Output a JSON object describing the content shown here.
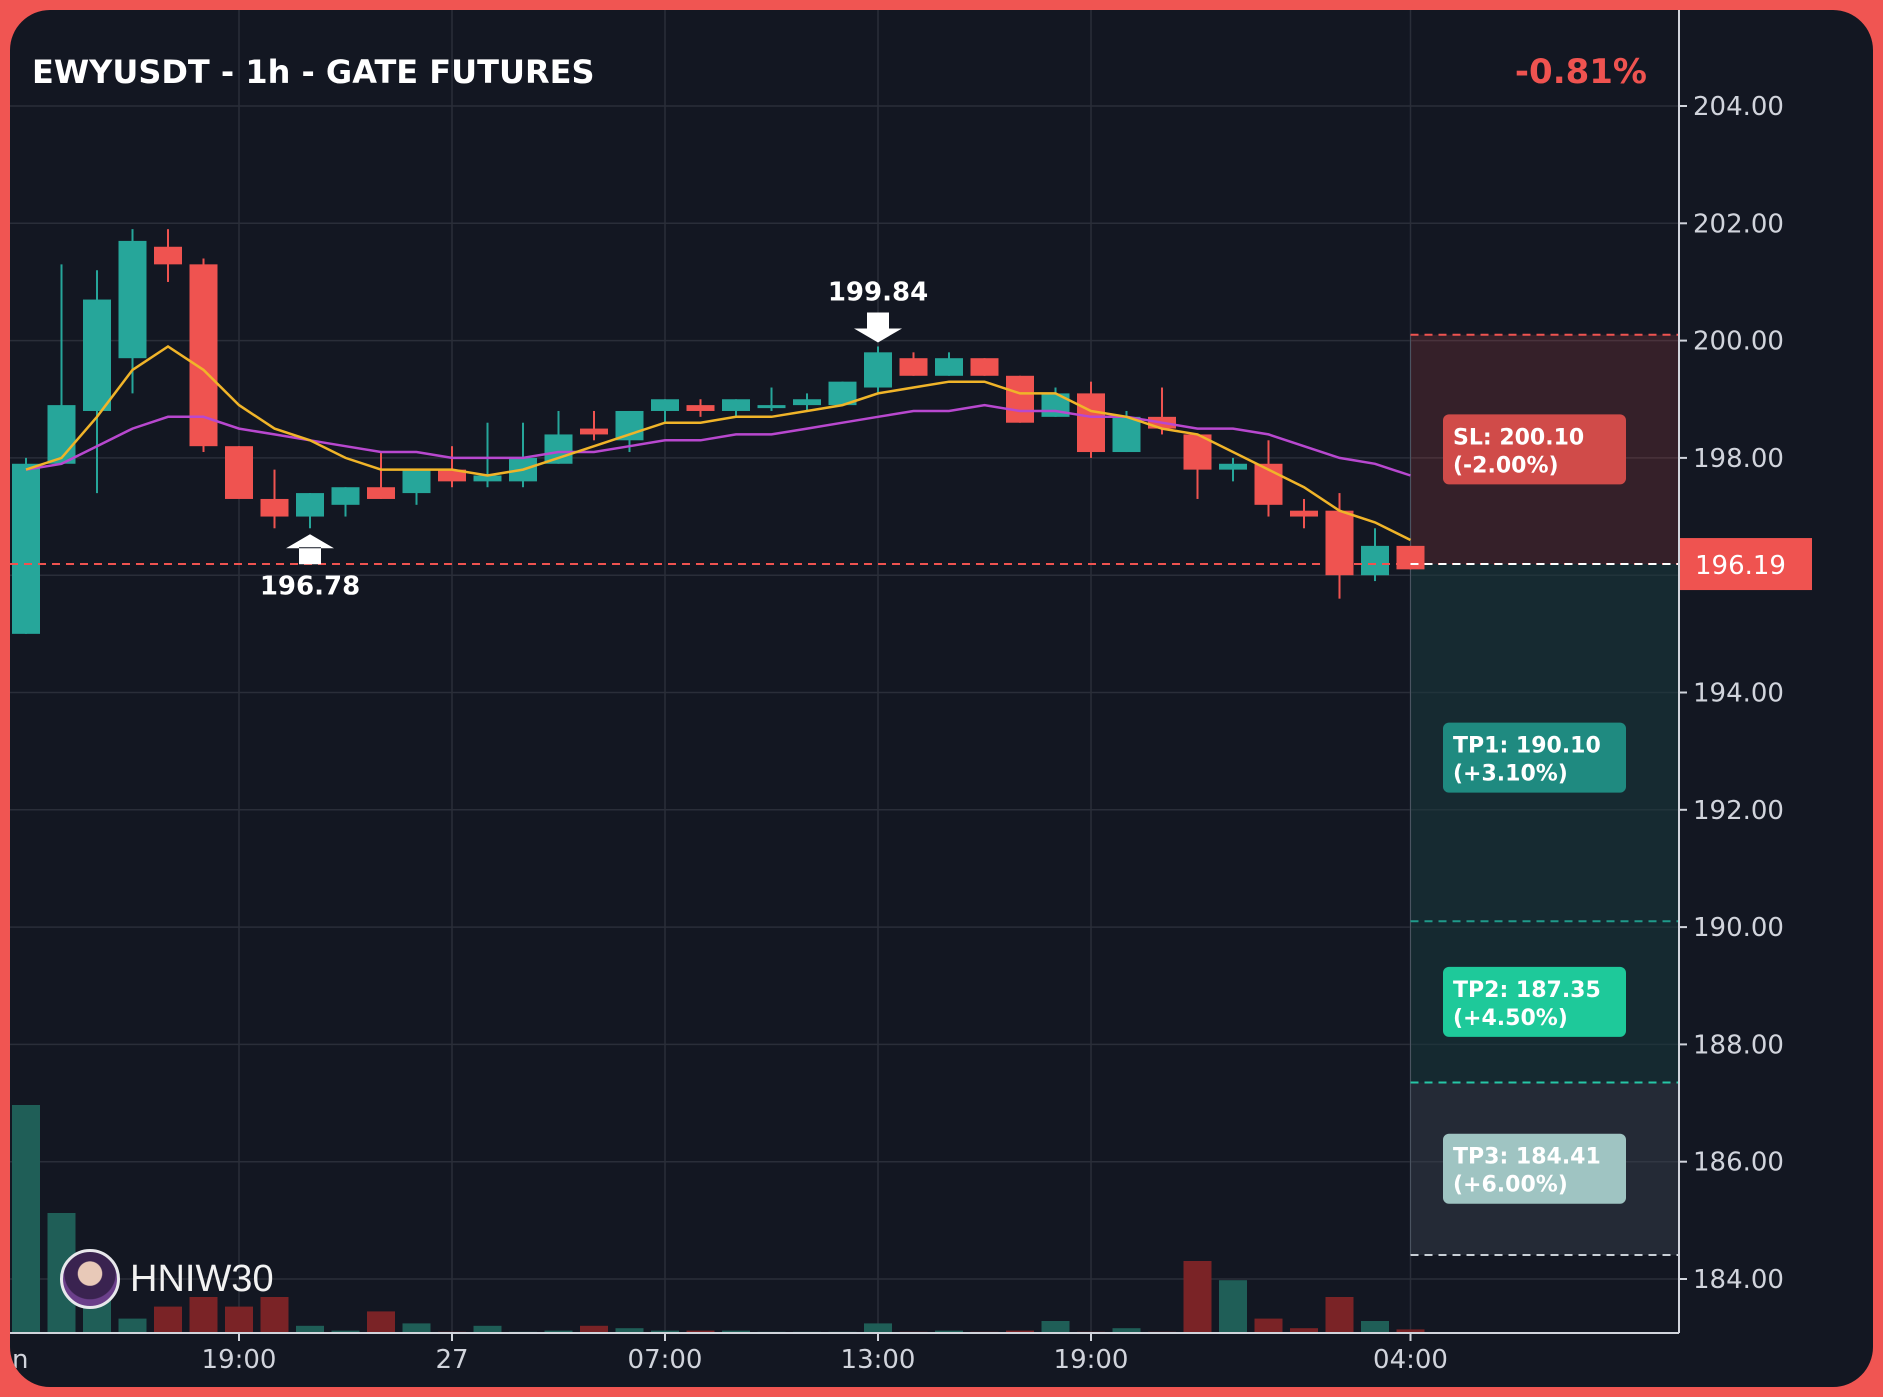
{
  "title": "EWYUSDT - 1h - GATE FUTURES",
  "change_text": "-0.81%",
  "brand": {
    "name": "HNIW30",
    "avatar_icon": "avatar-icon"
  },
  "colors": {
    "up": "#26a69a",
    "down": "#ef5350",
    "ma_fast": "#f0b429",
    "ma_slow": "#b848cf",
    "sl": "#ef5350",
    "tp1": "#1f8a80",
    "tp2": "#1ec99a",
    "tp3": "#9fc4c2"
  },
  "chart_data": {
    "type": "candlestick",
    "title": "EWYUSDT - 1h - GATE FUTURES",
    "y_ticks": [
      "204.00",
      "202.00",
      "200.00",
      "198.00",
      "196.00",
      "194.00",
      "192.00",
      "190.00",
      "188.00",
      "186.00",
      "184.00"
    ],
    "ylim": [
      183.0,
      205.3
    ],
    "x_ticks": [
      {
        "index": 6,
        "label": "19:00"
      },
      {
        "index": 12,
        "label": "27"
      },
      {
        "index": 18,
        "label": "07:00"
      },
      {
        "index": 24,
        "label": "13:00"
      },
      {
        "index": 30,
        "label": "19:00"
      },
      {
        "index": 39,
        "label": "04:00"
      }
    ],
    "x_tick_partial_left": "n",
    "candles": [
      {
        "o": 195.0,
        "h": 198.0,
        "l": 195.0,
        "c": 197.9,
        "v": 95
      },
      {
        "o": 197.9,
        "h": 201.3,
        "l": 197.9,
        "c": 198.9,
        "v": 50
      },
      {
        "o": 198.8,
        "h": 201.2,
        "l": 197.4,
        "c": 200.7,
        "v": 14
      },
      {
        "o": 199.7,
        "h": 201.9,
        "l": 199.1,
        "c": 201.7,
        "v": 6
      },
      {
        "o": 201.6,
        "h": 201.9,
        "l": 201.0,
        "c": 201.3,
        "v": 11
      },
      {
        "o": 201.3,
        "h": 201.4,
        "l": 198.1,
        "c": 198.2,
        "v": 15
      },
      {
        "o": 198.2,
        "h": 198.2,
        "l": 197.4,
        "c": 197.3,
        "v": 11
      },
      {
        "o": 197.3,
        "h": 197.8,
        "l": 196.8,
        "c": 197.0,
        "v": 15
      },
      {
        "o": 197.0,
        "h": 197.4,
        "l": 196.8,
        "c": 197.4,
        "v": 3
      },
      {
        "o": 197.2,
        "h": 197.5,
        "l": 197.0,
        "c": 197.5,
        "v": 1
      },
      {
        "o": 197.5,
        "h": 198.1,
        "l": 197.3,
        "c": 197.3,
        "v": 9
      },
      {
        "o": 197.4,
        "h": 197.8,
        "l": 197.2,
        "c": 197.8,
        "v": 4
      },
      {
        "o": 197.8,
        "h": 198.2,
        "l": 197.5,
        "c": 197.6,
        "v": 0.5
      },
      {
        "o": 197.6,
        "h": 198.6,
        "l": 197.5,
        "c": 197.7,
        "v": 3
      },
      {
        "o": 197.6,
        "h": 198.6,
        "l": 197.5,
        "c": 198.0,
        "v": 0.5
      },
      {
        "o": 197.9,
        "h": 198.8,
        "l": 197.9,
        "c": 198.4,
        "v": 1
      },
      {
        "o": 198.5,
        "h": 198.8,
        "l": 198.3,
        "c": 198.4,
        "v": 3
      },
      {
        "o": 198.3,
        "h": 198.8,
        "l": 198.1,
        "c": 198.8,
        "v": 2
      },
      {
        "o": 198.8,
        "h": 199.0,
        "l": 198.6,
        "c": 199.0,
        "v": 1
      },
      {
        "o": 198.9,
        "h": 199.0,
        "l": 198.7,
        "c": 198.8,
        "v": 1
      },
      {
        "o": 198.8,
        "h": 199.0,
        "l": 198.7,
        "c": 199.0,
        "v": 1
      },
      {
        "o": 198.9,
        "h": 199.2,
        "l": 198.8,
        "c": 198.9,
        "v": 0.5
      },
      {
        "o": 198.9,
        "h": 199.1,
        "l": 198.8,
        "c": 199.0,
        "v": 0.5
      },
      {
        "o": 198.9,
        "h": 199.3,
        "l": 198.9,
        "c": 199.3,
        "v": 0.5
      },
      {
        "o": 199.2,
        "h": 199.9,
        "l": 199.1,
        "c": 199.8,
        "v": 4
      },
      {
        "o": 199.7,
        "h": 199.8,
        "l": 199.4,
        "c": 199.4,
        "v": 0.5
      },
      {
        "o": 199.4,
        "h": 199.8,
        "l": 199.4,
        "c": 199.7,
        "v": 1
      },
      {
        "o": 199.7,
        "h": 199.7,
        "l": 199.4,
        "c": 199.4,
        "v": 0.5
      },
      {
        "o": 199.4,
        "h": 199.4,
        "l": 198.6,
        "c": 198.6,
        "v": 1
      },
      {
        "o": 198.7,
        "h": 199.2,
        "l": 198.7,
        "c": 199.1,
        "v": 5
      },
      {
        "o": 199.1,
        "h": 199.3,
        "l": 198.0,
        "c": 198.1,
        "v": 0.5
      },
      {
        "o": 198.1,
        "h": 198.8,
        "l": 198.1,
        "c": 198.7,
        "v": 2
      },
      {
        "o": 198.7,
        "h": 199.2,
        "l": 198.4,
        "c": 198.5,
        "v": 0.5
      },
      {
        "o": 198.4,
        "h": 198.4,
        "l": 197.3,
        "c": 197.8,
        "v": 30
      },
      {
        "o": 197.8,
        "h": 198.0,
        "l": 197.6,
        "c": 197.9,
        "v": 22
      },
      {
        "o": 197.9,
        "h": 198.3,
        "l": 197.0,
        "c": 197.2,
        "v": 6
      },
      {
        "o": 197.1,
        "h": 197.3,
        "l": 196.8,
        "c": 197.0,
        "v": 2
      },
      {
        "o": 197.1,
        "h": 197.4,
        "l": 195.6,
        "c": 196.0,
        "v": 15
      },
      {
        "o": 196.0,
        "h": 196.8,
        "l": 195.9,
        "c": 196.5,
        "v": 5
      },
      {
        "o": 196.5,
        "h": 196.5,
        "l": 196.1,
        "c": 196.1,
        "v": 1.5
      }
    ],
    "ma_fast": [
      197.8,
      198.0,
      198.7,
      199.5,
      199.9,
      199.5,
      198.9,
      198.5,
      198.3,
      198.0,
      197.8,
      197.8,
      197.8,
      197.7,
      197.8,
      198.0,
      198.2,
      198.4,
      198.6,
      198.6,
      198.7,
      198.7,
      198.8,
      198.9,
      199.1,
      199.2,
      199.3,
      199.3,
      199.1,
      199.1,
      198.8,
      198.7,
      198.5,
      198.4,
      198.1,
      197.8,
      197.5,
      197.1,
      196.9,
      196.6
    ],
    "ma_slow": [
      197.8,
      197.9,
      198.2,
      198.5,
      198.7,
      198.7,
      198.5,
      198.4,
      198.3,
      198.2,
      198.1,
      198.1,
      198.0,
      198.0,
      198.0,
      198.1,
      198.1,
      198.2,
      198.3,
      198.3,
      198.4,
      198.4,
      198.5,
      198.6,
      198.7,
      198.8,
      198.8,
      198.9,
      198.8,
      198.8,
      198.7,
      198.7,
      198.6,
      198.5,
      198.5,
      198.4,
      198.2,
      198.0,
      197.9,
      197.7
    ],
    "volume_max": 100,
    "last_price": {
      "value": 196.19,
      "label": "196.19"
    },
    "markers": [
      {
        "type": "high",
        "index": 24,
        "value": 199.84,
        "label": "199.84"
      },
      {
        "type": "low",
        "index": 8,
        "value": 196.78,
        "label": "196.78"
      }
    ],
    "levels": {
      "entry": 196.19,
      "sl": {
        "value": 200.1,
        "label_line1": "SL: 200.10",
        "label_line2": "(-2.00%)"
      },
      "tp": [
        {
          "value": 190.1,
          "label_line1": "TP1: 190.10",
          "label_line2": "(+3.10%)"
        },
        {
          "value": 187.35,
          "label_line1": "TP2: 187.35",
          "label_line2": "(+4.50%)"
        },
        {
          "value": 184.41,
          "label_line1": "TP3: 184.41",
          "label_line2": "(+6.00%)"
        }
      ]
    }
  }
}
